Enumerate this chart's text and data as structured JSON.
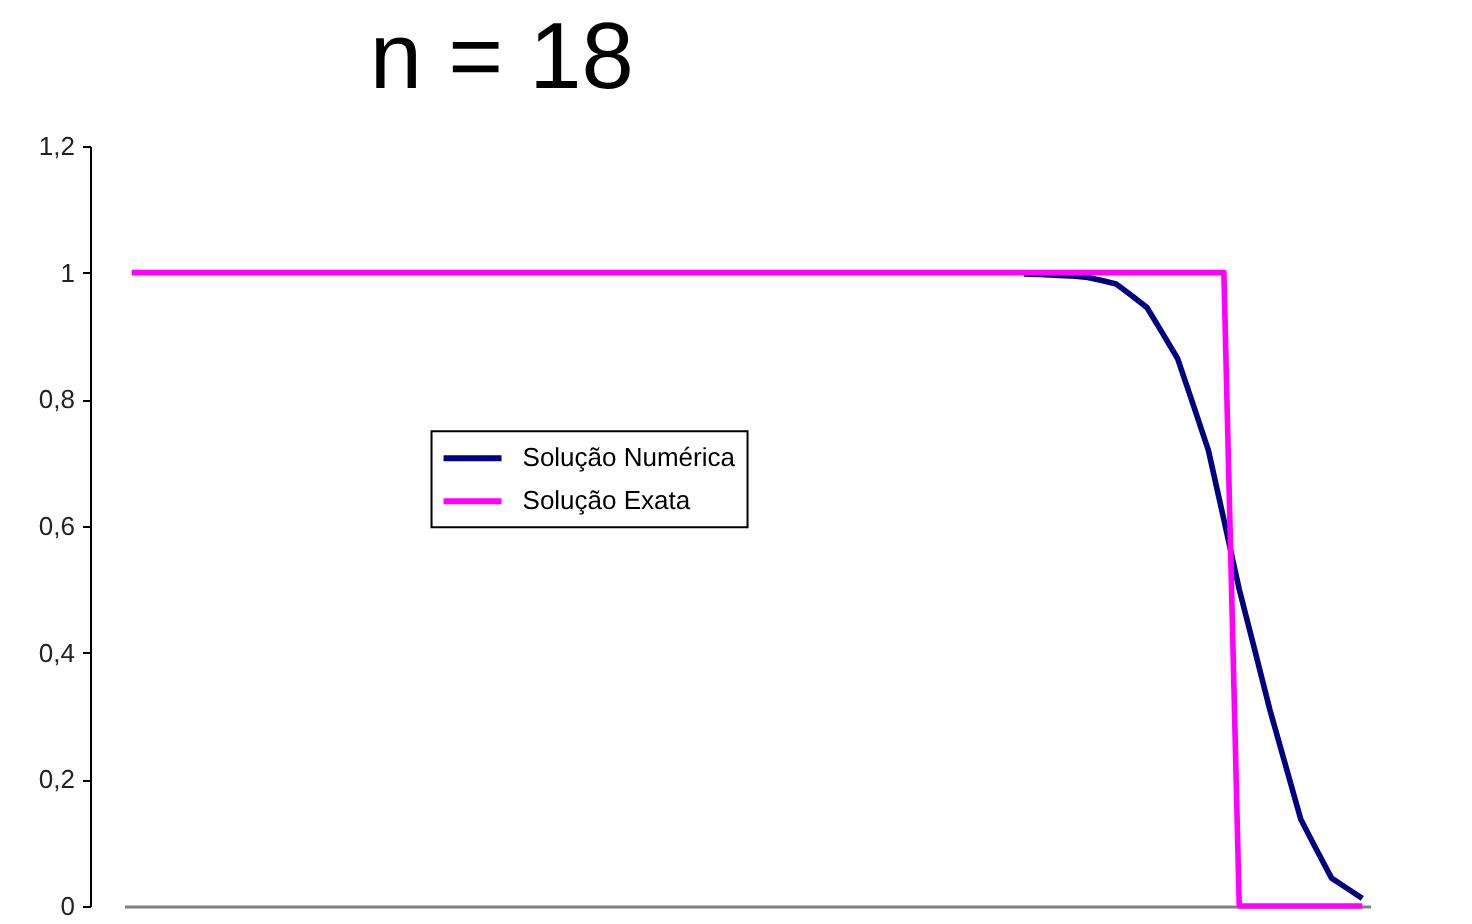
{
  "chart_data": {
    "type": "line",
    "title": "n = 18",
    "categories": [
      null,
      null,
      null,
      null,
      null,
      null,
      null,
      null,
      null,
      null,
      null,
      null,
      null,
      null,
      null,
      null,
      null,
      null,
      null,
      null,
      null,
      null,
      null,
      null,
      null,
      null,
      null,
      null,
      null,
      null,
      null,
      null,
      null,
      null,
      null,
      null,
      null,
      null,
      null,
      null,
      null,
      null,
      null,
      null,
      null,
      null,
      null,
      null,
      null,
      null,
      null,
      null,
      null,
      null,
      null,
      null,
      null,
      null,
      null,
      null,
      null,
      null,
      null,
      null,
      null,
      null,
      null,
      null,
      null,
      null,
      null,
      null,
      null,
      null,
      null,
      null,
      null,
      null,
      null,
      null,
      null
    ],
    "series": [
      {
        "name": "Solução Numérica",
        "color": "#000080",
        "values": [
          null,
          null,
          null,
          null,
          null,
          null,
          null,
          null,
          null,
          null,
          null,
          null,
          null,
          null,
          null,
          null,
          null,
          null,
          null,
          null,
          null,
          null,
          null,
          null,
          null,
          null,
          null,
          null,
          null,
          null,
          null,
          null,
          null,
          null,
          null,
          null,
          null,
          null,
          null,
          null,
          null,
          null,
          null,
          null,
          null,
          null,
          null,
          null,
          null,
          null,
          null,
          null,
          null,
          null,
          null,
          null,
          null,
          null,
          0.998,
          0.997,
          0.996,
          0.995,
          0.993,
          0.988,
          0.982,
          0.964,
          0.945,
          0.905,
          0.864,
          0.792,
          0.719,
          0.61,
          0.5,
          0.405,
          0.309,
          0.223,
          0.137,
          0.09,
          0.044,
          0.028,
          0.012
        ]
      },
      {
        "name": "Solução Exata",
        "color": "#ff00ff",
        "values": [
          1,
          1,
          1,
          1,
          1,
          1,
          1,
          1,
          1,
          1,
          1,
          1,
          1,
          1,
          1,
          1,
          1,
          1,
          1,
          1,
          1,
          1,
          1,
          1,
          1,
          1,
          1,
          1,
          1,
          1,
          1,
          1,
          1,
          1,
          1,
          1,
          1,
          1,
          1,
          1,
          1,
          1,
          1,
          1,
          1,
          1,
          1,
          1,
          1,
          1,
          1,
          1,
          1,
          1,
          1,
          1,
          1,
          1,
          1,
          1,
          1,
          1,
          1,
          1,
          1,
          1,
          1,
          1,
          1,
          1,
          1,
          1,
          0,
          0,
          0,
          0,
          0,
          0,
          0,
          0,
          0
        ]
      }
    ],
    "ylim": [
      0,
      1.2
    ],
    "yticks": [
      0,
      {
        "value": 0.2,
        "label": "0,2"
      },
      {
        "value": 0.4,
        "label": "0,4"
      },
      {
        "value": 0.6,
        "label": "0,6"
      },
      {
        "value": 0.8,
        "label": "0,8"
      },
      1,
      {
        "value": 1.2,
        "label": "1,2"
      }
    ],
    "legend": "left",
    "tick_labels": "y"
  }
}
